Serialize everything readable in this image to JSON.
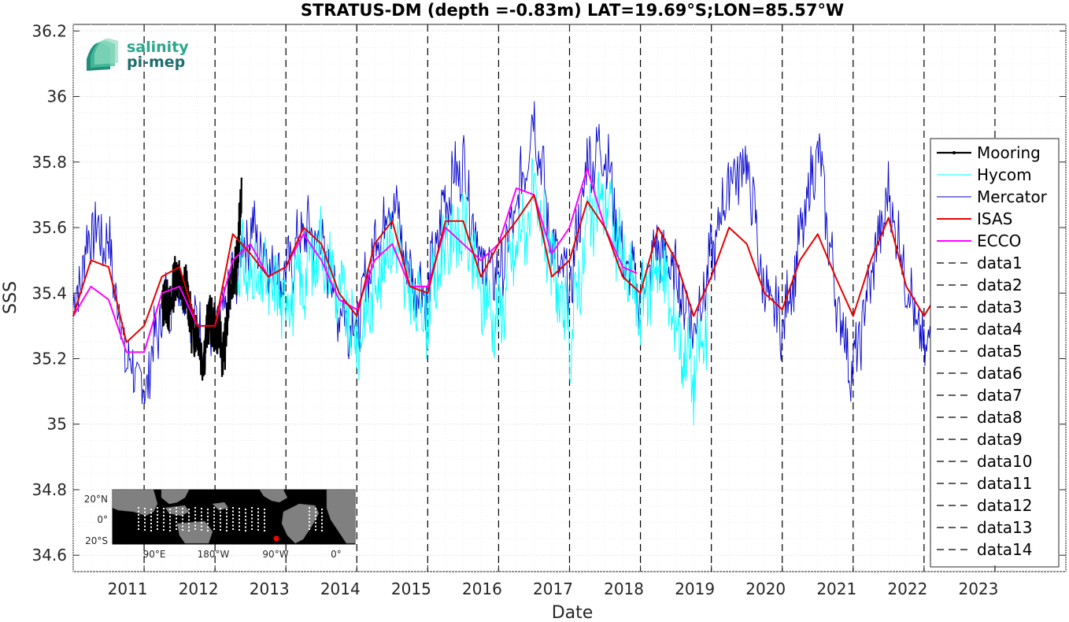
{
  "chart_data": {
    "type": "line",
    "title": "STRATUS-DM (depth =-0.83m) LAT=19.69°S;LON=85.57°W",
    "xlabel": "Date",
    "ylabel": "SSS",
    "xlim": [
      2010.0,
      2024.0
    ],
    "ylim": [
      34.55,
      36.22
    ],
    "yticks": [
      34.6,
      34.8,
      35,
      35.2,
      35.4,
      35.6,
      35.8,
      36,
      36.2
    ],
    "ytick_labels": [
      "34.6",
      "34.8",
      "35",
      "35.2",
      "35.4",
      "35.6",
      "35.8",
      "36",
      "36.2"
    ],
    "xticks": [
      2011,
      2012,
      2013,
      2014,
      2015,
      2016,
      2017,
      2018,
      2019,
      2020,
      2021,
      2022,
      2023
    ],
    "xtick_labels": [
      "2011",
      "2012",
      "2013",
      "2014",
      "2015",
      "2016",
      "2017",
      "2018",
      "2019",
      "2020",
      "2021",
      "2022",
      "2023"
    ],
    "grid": true,
    "legend_position": "right",
    "vertical_dashed_lines_x": [
      2011,
      2012,
      2013,
      2014,
      2015,
      2016,
      2017,
      2018,
      2019,
      2020,
      2021,
      2022,
      2023
    ],
    "series": [
      {
        "name": "Mooring",
        "color": "#000000",
        "x": [
          2011.25,
          2011.4,
          2011.5,
          2011.6,
          2011.7,
          2011.8,
          2011.9,
          2012.0,
          2012.1,
          2012.2,
          2012.3,
          2012.38
        ],
        "y": [
          35.33,
          35.4,
          35.45,
          35.38,
          35.3,
          35.22,
          35.28,
          35.33,
          35.2,
          35.38,
          35.5,
          35.7
        ]
      },
      {
        "name": "Hycom",
        "color": "#00ffff",
        "x": [
          2012.3,
          2012.5,
          2012.75,
          2013.0,
          2013.25,
          2013.5,
          2013.75,
          2014.0,
          2014.25,
          2014.5,
          2014.75,
          2015.0,
          2015.25,
          2015.5,
          2015.75,
          2016.0,
          2016.25,
          2016.5,
          2016.75,
          2017.0,
          2017.25,
          2017.5,
          2017.75,
          2018.0,
          2018.25,
          2018.5,
          2018.75,
          2018.95
        ],
        "y": [
          35.5,
          35.45,
          35.42,
          35.38,
          35.45,
          35.55,
          35.4,
          35.25,
          35.42,
          35.58,
          35.38,
          35.35,
          35.55,
          35.6,
          35.4,
          35.32,
          35.55,
          35.68,
          35.48,
          35.25,
          35.6,
          35.7,
          35.5,
          35.35,
          35.5,
          35.3,
          35.15,
          35.3
        ]
      },
      {
        "name": "Mercator",
        "color": "#0000cc",
        "x": [
          2010.0,
          2010.25,
          2010.5,
          2010.75,
          2011.0,
          2011.25,
          2011.5,
          2011.75,
          2012.0,
          2012.25,
          2012.5,
          2012.75,
          2013.0,
          2013.25,
          2013.5,
          2013.75,
          2014.0,
          2014.25,
          2014.5,
          2014.75,
          2015.0,
          2015.25,
          2015.5,
          2015.75,
          2016.0,
          2016.25,
          2016.5,
          2016.75,
          2017.0,
          2017.25,
          2017.5,
          2017.75,
          2018.0,
          2018.25,
          2018.5,
          2018.75,
          2019.0,
          2019.25,
          2019.5,
          2019.75,
          2020.0,
          2020.25,
          2020.5,
          2020.75,
          2021.0,
          2021.25,
          2021.5,
          2021.75,
          2022.0,
          2022.25,
          2022.45
        ],
        "y": [
          35.35,
          35.6,
          35.55,
          35.2,
          35.1,
          35.35,
          35.45,
          35.3,
          35.25,
          35.45,
          35.6,
          35.5,
          35.45,
          35.6,
          35.55,
          35.35,
          35.3,
          35.55,
          35.7,
          35.45,
          35.4,
          35.7,
          35.8,
          35.5,
          35.45,
          35.65,
          35.95,
          35.55,
          35.4,
          35.8,
          35.85,
          35.5,
          35.4,
          35.55,
          35.45,
          35.3,
          35.5,
          35.75,
          35.8,
          35.4,
          35.3,
          35.55,
          35.85,
          35.4,
          35.15,
          35.45,
          35.7,
          35.45,
          35.2,
          35.5,
          35.4
        ]
      },
      {
        "name": "ISAS",
        "color": "#e60000",
        "x": [
          2010.0,
          2010.25,
          2010.5,
          2010.75,
          2011.0,
          2011.25,
          2011.5,
          2011.75,
          2012.0,
          2012.25,
          2012.5,
          2012.75,
          2013.0,
          2013.25,
          2013.5,
          2013.75,
          2014.0,
          2014.25,
          2014.5,
          2014.75,
          2015.0,
          2015.25,
          2015.5,
          2015.75,
          2016.0,
          2016.25,
          2016.5,
          2016.75,
          2017.0,
          2017.25,
          2017.5,
          2017.75,
          2018.0,
          2018.25,
          2018.5,
          2018.75,
          2019.0,
          2019.25,
          2019.5,
          2019.75,
          2020.0,
          2020.25,
          2020.5,
          2020.75,
          2021.0,
          2021.25,
          2021.5,
          2021.75,
          2022.0,
          2022.25,
          2022.5
        ],
        "y": [
          35.33,
          35.5,
          35.48,
          35.25,
          35.3,
          35.45,
          35.48,
          35.3,
          35.3,
          35.58,
          35.52,
          35.45,
          35.48,
          35.6,
          35.55,
          35.4,
          35.33,
          35.55,
          35.62,
          35.42,
          35.4,
          35.62,
          35.62,
          35.45,
          35.55,
          35.62,
          35.7,
          35.45,
          35.5,
          35.68,
          35.6,
          35.45,
          35.4,
          35.6,
          35.5,
          35.33,
          35.45,
          35.6,
          35.55,
          35.4,
          35.35,
          35.5,
          35.58,
          35.45,
          35.33,
          35.5,
          35.63,
          35.42,
          35.33,
          35.42,
          35.38
        ]
      },
      {
        "name": "ECCO",
        "color": "#ff00ff",
        "x": [
          2010.0,
          2010.25,
          2010.5,
          2010.75,
          2011.0,
          2011.25,
          2011.5,
          2011.75,
          2012.0,
          2012.25,
          2012.5,
          2012.75,
          2013.0,
          2013.25,
          2013.5,
          2013.75,
          2014.0,
          2014.25,
          2014.5,
          2014.75,
          2015.0,
          2015.25,
          2015.5,
          2015.75,
          2016.0,
          2016.25,
          2016.5,
          2016.75,
          2017.0,
          2017.25,
          2017.5,
          2017.75,
          2017.95
        ],
        "y": [
          35.33,
          35.42,
          35.38,
          35.22,
          35.22,
          35.4,
          35.42,
          35.3,
          35.3,
          35.5,
          35.55,
          35.45,
          35.48,
          35.58,
          35.5,
          35.38,
          35.35,
          35.5,
          35.55,
          35.42,
          35.42,
          35.6,
          35.55,
          35.5,
          35.55,
          35.72,
          35.7,
          35.52,
          35.6,
          35.78,
          35.6,
          35.48,
          35.46
        ]
      },
      {
        "name": "data1",
        "color": "#000000",
        "x": [],
        "y": []
      },
      {
        "name": "data2",
        "color": "#000000",
        "x": [],
        "y": []
      },
      {
        "name": "data3",
        "color": "#000000",
        "x": [],
        "y": []
      },
      {
        "name": "data4",
        "color": "#000000",
        "x": [],
        "y": []
      },
      {
        "name": "data5",
        "color": "#000000",
        "x": [],
        "y": []
      },
      {
        "name": "data6",
        "color": "#000000",
        "x": [],
        "y": []
      },
      {
        "name": "data7",
        "color": "#000000",
        "x": [],
        "y": []
      },
      {
        "name": "data8",
        "color": "#000000",
        "x": [],
        "y": []
      },
      {
        "name": "data9",
        "color": "#000000",
        "x": [],
        "y": []
      },
      {
        "name": "data10",
        "color": "#000000",
        "x": [],
        "y": []
      },
      {
        "name": "data11",
        "color": "#000000",
        "x": [],
        "y": []
      },
      {
        "name": "data12",
        "color": "#000000",
        "x": [],
        "y": []
      },
      {
        "name": "data13",
        "color": "#000000",
        "x": [],
        "y": []
      },
      {
        "name": "data14",
        "color": "#000000",
        "x": [],
        "y": []
      }
    ]
  },
  "logo": {
    "line1": "salinity",
    "line2": "pi-mep",
    "color1": "#2aa68c",
    "color2": "#1e6e6e"
  },
  "inset_map": {
    "lat_labels": [
      "20°N",
      "0°",
      "20°S"
    ],
    "lon_labels": [
      "90°E",
      "180°W",
      "90°W",
      "0°"
    ],
    "marker_color": "#ff0000",
    "land_color": "#808080"
  }
}
